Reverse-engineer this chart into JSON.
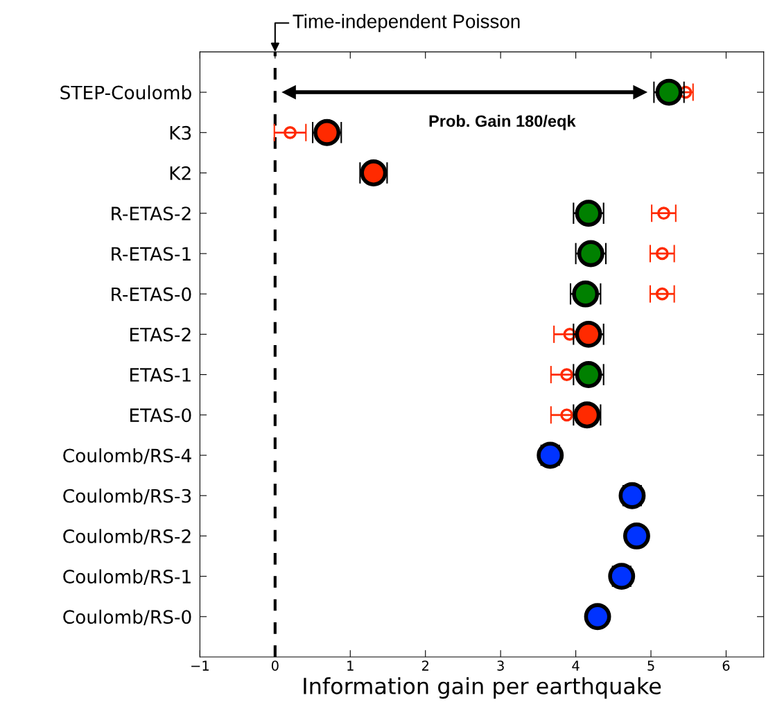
{
  "chart_data": {
    "type": "scatter",
    "orientation": "horizontal",
    "xlabel": "Information gain per earthquake",
    "categories": [
      "STEP-Coulomb",
      "K3",
      "K2",
      "R-ETAS-2",
      "R-ETAS-1",
      "R-ETAS-0",
      "ETAS-2",
      "ETAS-1",
      "ETAS-0",
      "Coulomb/RS-4",
      "Coulomb/RS-3",
      "Coulomb/RS-2",
      "Coulomb/RS-1",
      "Coulomb/RS-0"
    ],
    "series": [
      {
        "color": "#ff2a00",
        "marker": "circle",
        "values": [
          5.46,
          0.2,
          null,
          5.17,
          5.15,
          5.15,
          3.92,
          3.88,
          3.88,
          null,
          null,
          null,
          null,
          null
        ],
        "errors": [
          0.1,
          0.21,
          null,
          0.16,
          0.16,
          0.16,
          0.21,
          0.21,
          0.21,
          null,
          null,
          null,
          null,
          null
        ]
      },
      {
        "colors": [
          "#008000",
          "#ff2a00",
          "#ff2a00",
          "#008000",
          "#008000",
          "#008000",
          "#ff2a00",
          "#008000",
          "#ff2a00",
          "#0033ff",
          "#0033ff",
          "#0033ff",
          "#0033ff",
          "#0033ff"
        ],
        "marker": "circle",
        "values": [
          5.24,
          0.69,
          1.31,
          4.17,
          4.2,
          4.13,
          4.17,
          4.17,
          4.15,
          3.66,
          4.75,
          4.81,
          4.61,
          4.29
        ],
        "errors": [
          0.2,
          0.19,
          0.18,
          0.2,
          0.2,
          0.2,
          0.2,
          0.2,
          0.18,
          0.12,
          0.12,
          null,
          0.12,
          null
        ]
      }
    ],
    "xlim": [
      -1,
      6.5
    ],
    "xticks": [
      {
        "value": -1,
        "label": "−1"
      },
      0,
      1,
      2,
      3,
      4,
      5,
      6
    ],
    "ref_lines": [
      {
        "axis": "x",
        "value": 0,
        "label": "Time-independent Poisson",
        "line_style": "dashed",
        "color": "#000000"
      }
    ],
    "annotations": [
      "Prob. Gain 180/eqk"
    ],
    "grid": false,
    "legend": false
  }
}
